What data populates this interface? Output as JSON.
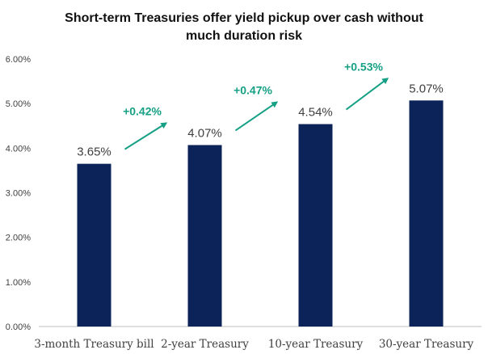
{
  "chart_data": {
    "type": "bar",
    "title_lines": [
      "Short-term Treasuries offer yield pickup over cash without",
      "much duration risk"
    ],
    "categories": [
      "3-month Treasury bill",
      "2-year Treasury",
      "10-year Treasury",
      "30-year Treasury"
    ],
    "values": [
      3.65,
      4.07,
      4.54,
      5.07
    ],
    "value_labels": [
      "3.65%",
      "4.07%",
      "4.54%",
      "5.07%"
    ],
    "yticks": [
      0,
      1,
      2,
      3,
      4,
      5,
      6
    ],
    "ytick_labels": [
      "0.00%",
      "1.00%",
      "2.00%",
      "3.00%",
      "4.00%",
      "5.00%",
      "6.00%"
    ],
    "ylim": [
      0,
      6
    ],
    "grid": false,
    "annotations": [
      {
        "text": "+0.42%",
        "from_index": 0,
        "to_index": 1
      },
      {
        "text": "+0.47%",
        "from_index": 1,
        "to_index": 2
      },
      {
        "text": "+0.53%",
        "from_index": 2,
        "to_index": 3
      }
    ],
    "colors": {
      "bar": "#0c2359",
      "annotation": "#16a085",
      "axis": "#bfbfbf"
    }
  }
}
